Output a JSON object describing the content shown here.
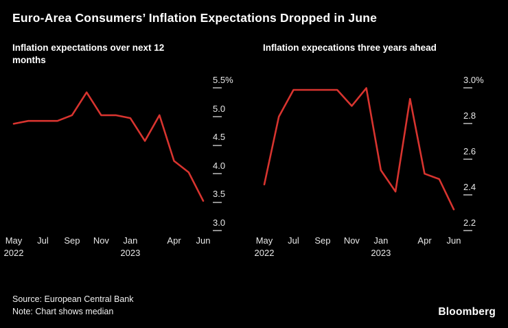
{
  "page": {
    "title": "Euro-Area Consumers’ Inflation Expectations Dropped in June",
    "source_line": "Source: European Central Bank",
    "note_line": "Note: Chart shows median",
    "brand": "Bloomberg",
    "background": "#000000",
    "accent_color": "#d8342f"
  },
  "chart_data": [
    {
      "type": "line",
      "title": "Inflation expectations over next 12\nmonths",
      "x": [
        "May 2022",
        "Jun 2022",
        "Jul 2022",
        "Aug 2022",
        "Sep 2022",
        "Oct 2022",
        "Nov 2022",
        "Dec 2022",
        "Jan 2023",
        "Feb 2023",
        "Mar 2023",
        "Apr 2023",
        "May 2023",
        "Jun 2023"
      ],
      "values": [
        4.75,
        4.8,
        4.8,
        4.8,
        4.9,
        5.3,
        4.9,
        4.9,
        4.85,
        4.45,
        4.9,
        4.1,
        3.9,
        3.4
      ],
      "ylim": [
        3.0,
        5.5
      ],
      "ylabel": "",
      "grid": false,
      "legend": "none",
      "line_color": "#d8342f",
      "yticks": [
        {
          "value": 5.5,
          "label": "5.5%"
        },
        {
          "value": 5.0,
          "label": "5.0"
        },
        {
          "value": 4.5,
          "label": "4.5"
        },
        {
          "value": 4.0,
          "label": "4.0"
        },
        {
          "value": 3.5,
          "label": "3.5"
        },
        {
          "value": 3.0,
          "label": "3.0"
        }
      ],
      "xticks": [
        {
          "index": 0,
          "label": "May",
          "year": "2022"
        },
        {
          "index": 2,
          "label": "Jul"
        },
        {
          "index": 4,
          "label": "Sep"
        },
        {
          "index": 6,
          "label": "Nov"
        },
        {
          "index": 8,
          "label": "Jan",
          "year": "2023"
        },
        {
          "index": 11,
          "label": "Apr"
        },
        {
          "index": 13,
          "label": "Jun"
        }
      ]
    },
    {
      "type": "line",
      "title": "Inflation expecations three years ahead",
      "x": [
        "May 2022",
        "Jun 2022",
        "Jul 2022",
        "Aug 2022",
        "Sep 2022",
        "Oct 2022",
        "Nov 2022",
        "Dec 2022",
        "Jan 2023",
        "Feb 2023",
        "Mar 2023",
        "Apr 2023",
        "May 2023",
        "Jun 2023"
      ],
      "values": [
        2.42,
        2.8,
        2.95,
        2.95,
        2.95,
        2.95,
        2.86,
        2.96,
        2.5,
        2.38,
        2.9,
        2.48,
        2.45,
        2.28
      ],
      "ylim": [
        2.2,
        3.0
      ],
      "ylabel": "",
      "grid": false,
      "legend": "none",
      "line_color": "#d8342f",
      "yticks": [
        {
          "value": 3.0,
          "label": "3.0%"
        },
        {
          "value": 2.8,
          "label": "2.8"
        },
        {
          "value": 2.6,
          "label": "2.6"
        },
        {
          "value": 2.4,
          "label": "2.4"
        },
        {
          "value": 2.2,
          "label": "2.2"
        }
      ],
      "xticks": [
        {
          "index": 0,
          "label": "May",
          "year": "2022"
        },
        {
          "index": 2,
          "label": "Jul"
        },
        {
          "index": 4,
          "label": "Sep"
        },
        {
          "index": 6,
          "label": "Nov"
        },
        {
          "index": 8,
          "label": "Jan",
          "year": "2023"
        },
        {
          "index": 11,
          "label": "Apr"
        },
        {
          "index": 13,
          "label": "Jun"
        }
      ]
    }
  ]
}
